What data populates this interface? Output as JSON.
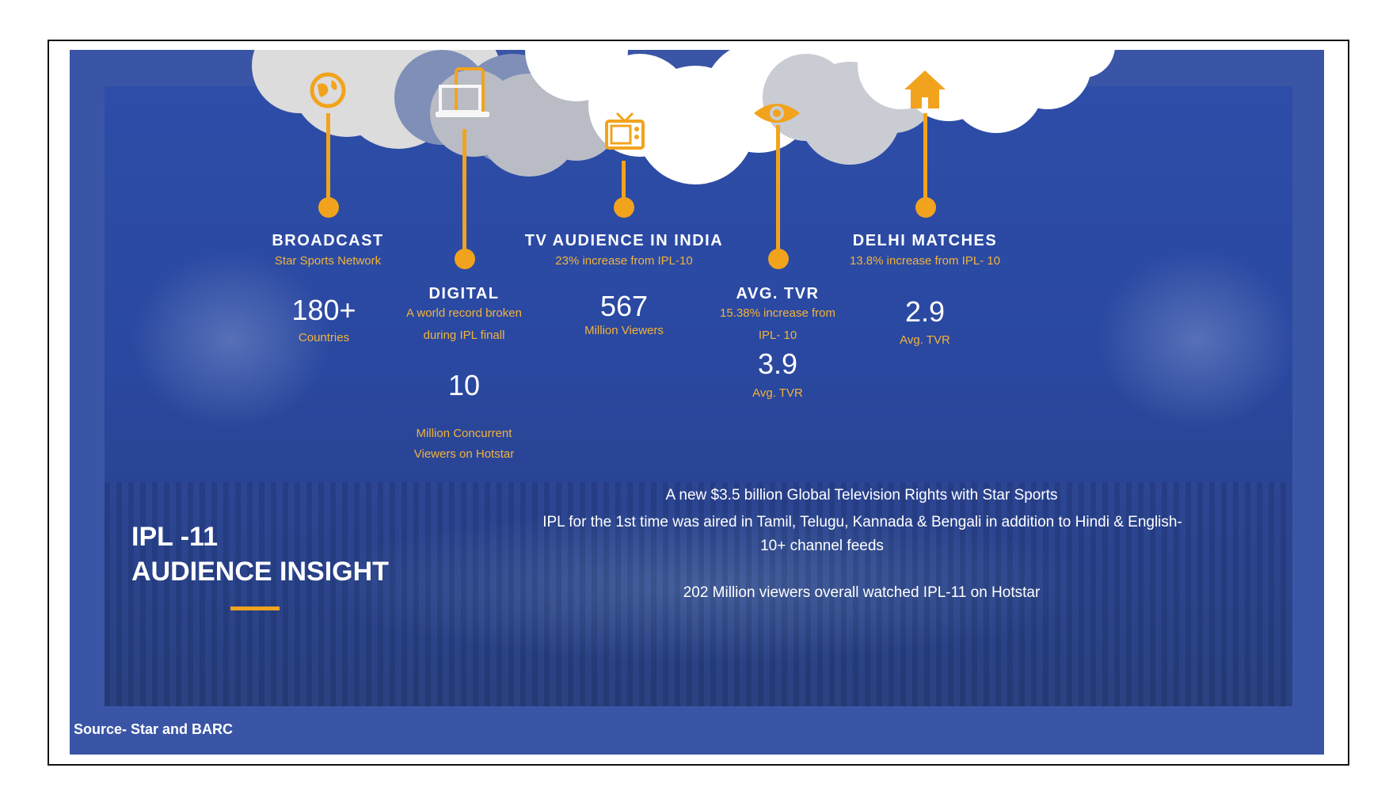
{
  "colors": {
    "slide_bg": "#3a55a5",
    "accent": "#f2a31d",
    "accent_text": "#f2b33a",
    "cloud_light": "#dcdcdc",
    "cloud_white": "#ffffff"
  },
  "icons": [
    "globe-icon",
    "devices-icon",
    "tv-icon",
    "eye-icon",
    "home-icon"
  ],
  "stats": {
    "broadcast": {
      "heading": "BROADCAST",
      "subheading": "Star Sports Network",
      "value": "180+",
      "value_label": "Countries"
    },
    "digital": {
      "heading": "DIGITAL",
      "subheading_line1": "A world record broken",
      "subheading_line2": "during IPL finall",
      "value": "10",
      "value_label_line1": "Million Concurrent",
      "value_label_line2": "Viewers on Hotstar"
    },
    "tv_audience": {
      "heading": "TV AUDIENCE IN INDIA",
      "subheading": "23% increase from IPL-10",
      "value": "567",
      "value_label": "Million Viewers"
    },
    "avg_tvr": {
      "heading": "AVG. TVR",
      "subheading_line1": "15.38% increase from",
      "subheading_line2": "IPL- 10",
      "value": "3.9",
      "value_label": "Avg. TVR"
    },
    "delhi": {
      "heading": "DELHI MATCHES",
      "subheading": "13.8% increase from IPL- 10",
      "value": "2.9",
      "value_label": "Avg. TVR"
    }
  },
  "title": {
    "line1": "IPL -11",
    "line2": "AUDIENCE INSIGHT"
  },
  "facts": {
    "line1": "A new $3.5 billion Global Television Rights with Star Sports",
    "line2": "IPL for the 1st time was aired in Tamil, Telugu, Kannada & Bengali in addition to Hindi & English-",
    "line3": "10+ channel feeds",
    "line4": "202 Million viewers overall watched IPL-11 on Hotstar"
  },
  "source": "Source- Star and BARC"
}
